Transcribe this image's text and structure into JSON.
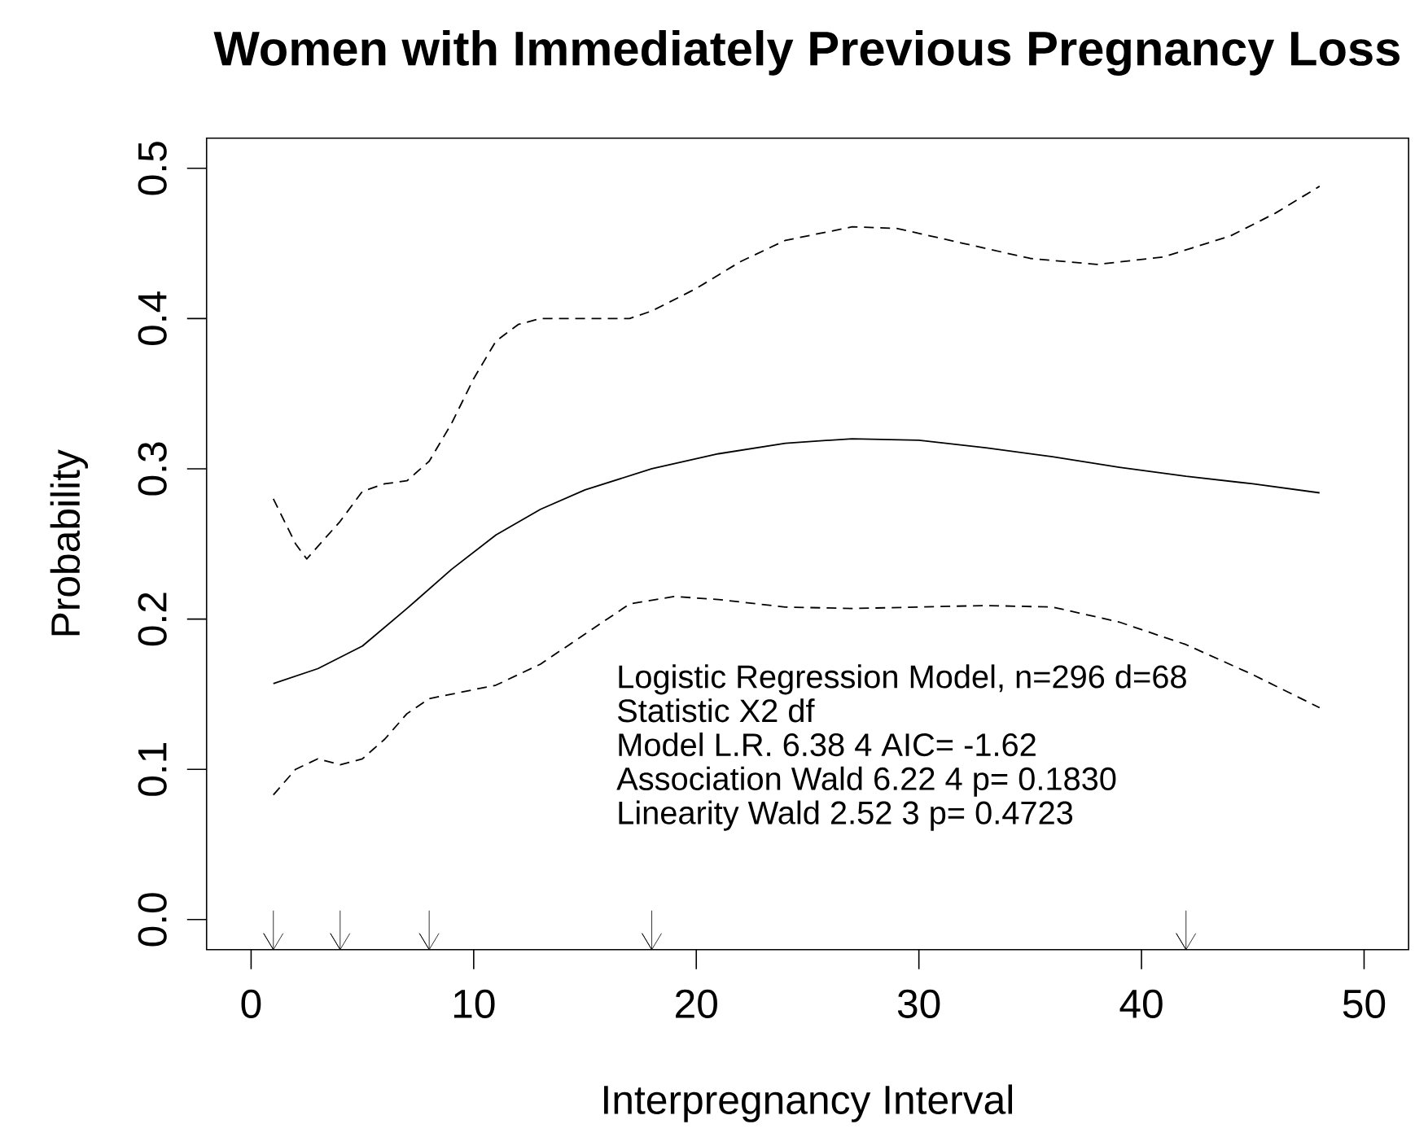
{
  "chart_data": {
    "type": "line",
    "title": "Women with Immediately Previous Pregnancy Loss",
    "xlabel": "Interpregnancy Interval",
    "ylabel": "Probability",
    "xlim": [
      -2,
      52
    ],
    "ylim": [
      -0.02,
      0.52
    ],
    "xticks": [
      0,
      10,
      20,
      30,
      40,
      50
    ],
    "yticks": [
      {
        "value": 0,
        "label": "0.0"
      },
      0.1,
      0.2,
      0.3,
      0.4,
      0.5
    ],
    "series": [
      {
        "color": "#000000",
        "line_style": "solid",
        "x": [
          1,
          3,
          5,
          7,
          9,
          11,
          13,
          15,
          18,
          21,
          24,
          27,
          30,
          33,
          36,
          39,
          42,
          45,
          48
        ],
        "values": [
          0.157,
          0.167,
          0.182,
          0.207,
          0.233,
          0.256,
          0.273,
          0.286,
          0.3,
          0.31,
          0.317,
          0.32,
          0.319,
          0.314,
          0.308,
          0.301,
          0.295,
          0.29,
          0.284
        ]
      },
      {
        "color": "#000000",
        "line_style": "dashed",
        "x": [
          1,
          2,
          2.5,
          4,
          5,
          6,
          7,
          8,
          9,
          10,
          11,
          12,
          13,
          15,
          17,
          18,
          20,
          22,
          24,
          27,
          29,
          32,
          35,
          38,
          41,
          44,
          46,
          48
        ],
        "values": [
          0.28,
          0.25,
          0.24,
          0.265,
          0.285,
          0.29,
          0.292,
          0.305,
          0.33,
          0.36,
          0.385,
          0.396,
          0.4,
          0.4,
          0.4,
          0.405,
          0.42,
          0.438,
          0.452,
          0.461,
          0.46,
          0.45,
          0.44,
          0.436,
          0.441,
          0.455,
          0.47,
          0.488
        ]
      },
      {
        "color": "#000000",
        "line_style": "dashed",
        "x": [
          1,
          2,
          3,
          4,
          5,
          6,
          7,
          8,
          9,
          11,
          13,
          15,
          17,
          19,
          21,
          24,
          27,
          30,
          33,
          36,
          39,
          42,
          45,
          48
        ],
        "values": [
          0.083,
          0.1,
          0.107,
          0.103,
          0.107,
          0.12,
          0.137,
          0.147,
          0.15,
          0.156,
          0.17,
          0.19,
          0.21,
          0.215,
          0.213,
          0.208,
          0.207,
          0.208,
          0.209,
          0.208,
          0.198,
          0.183,
          0.163,
          0.141
        ]
      },
      {
        "type": "scatter",
        "color": "#000000",
        "x": [
          1,
          4,
          8,
          18,
          42
        ],
        "values": [
          -0.007,
          -0.007,
          -0.007,
          -0.007,
          -0.007
        ]
      }
    ],
    "annotations": [
      "Logistic Regression Model, n=296 d=68",
      "Statistic X2 df",
      "Model L.R. 6.38 4 AIC= -1.62",
      "Association Wald 6.22 4 p= 0.1830",
      "Linearity Wald 2.52 3 p= 0.4723"
    ],
    "grid": false
  }
}
